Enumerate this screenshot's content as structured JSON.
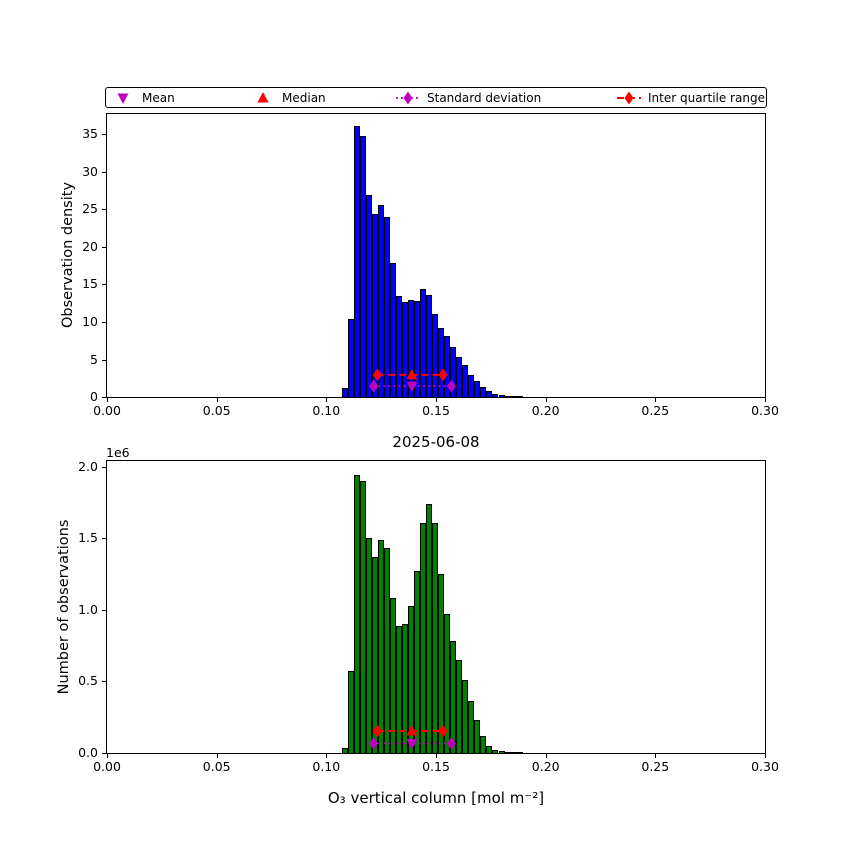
{
  "figure": {
    "title": "2025-06-08",
    "xlabel": "O₃ vertical column [mol m⁻²]"
  },
  "legend": {
    "items": [
      {
        "label": "Mean",
        "marker": "triangle-down",
        "line": "none",
        "color": "#bf00bf"
      },
      {
        "label": "Median",
        "marker": "triangle-up",
        "line": "none",
        "color": "#ff0000"
      },
      {
        "label": "Standard deviation",
        "marker": "diamond",
        "line": "dotted",
        "color": "#bf00bf"
      },
      {
        "label": "Inter quartile range",
        "marker": "diamond",
        "line": "dashed",
        "color": "#ff0000"
      }
    ]
  },
  "chart_data": [
    {
      "type": "bar",
      "subtype": "histogram",
      "ylabel": "Observation density",
      "bar_color": "#0000ff",
      "edge_color": "#000000",
      "xlim": [
        0.0,
        0.3
      ],
      "ylim": [
        0.0,
        37.7
      ],
      "xticks": [
        0.0,
        0.05,
        0.1,
        0.15,
        0.2,
        0.25,
        0.3
      ],
      "xtick_labels": [
        "0.00",
        "0.05",
        "0.10",
        "0.15",
        "0.20",
        "0.25",
        "0.30"
      ],
      "yticks": [
        0,
        5,
        10,
        15,
        20,
        25,
        30,
        35
      ],
      "ytick_labels": [
        "0",
        "5",
        "10",
        "15",
        "20",
        "25",
        "30",
        "35"
      ],
      "bin_start": 0.107,
      "bin_width": 0.00275,
      "bin_counts": [
        1.2,
        10.4,
        36.1,
        34.8,
        26.9,
        24.4,
        25.6,
        24.0,
        17.8,
        13.4,
        12.7,
        12.9,
        12.8,
        14.4,
        13.6,
        11.1,
        9.2,
        8.1,
        6.7,
        5.3,
        4.2,
        2.9,
        2.1,
        1.3,
        0.8,
        0.45,
        0.3,
        0.18,
        0.1,
        0.05
      ],
      "stats": {
        "mean": 0.139,
        "median": 0.139,
        "std_low": 0.1215,
        "std_high": 0.157,
        "iqr_low": 0.1233,
        "iqr_high": 0.1532,
        "std_marker_y": 1.45,
        "iqr_marker_y": 2.95
      }
    },
    {
      "type": "bar",
      "subtype": "histogram",
      "ylabel": "Number of observations",
      "offset_text": "1e6",
      "bar_color": "#008000",
      "edge_color": "#000000",
      "xlim": [
        0.0,
        0.3
      ],
      "ylim": [
        0,
        2040000
      ],
      "xticks": [
        0.0,
        0.05,
        0.1,
        0.15,
        0.2,
        0.25,
        0.3
      ],
      "xtick_labels": [
        "0.00",
        "0.05",
        "0.10",
        "0.15",
        "0.20",
        "0.25",
        "0.30"
      ],
      "yticks": [
        0,
        500000,
        1000000,
        1500000,
        2000000
      ],
      "ytick_labels": [
        "0.0",
        "0.5",
        "1.0",
        "1.5",
        "2.0"
      ],
      "bin_start": 0.107,
      "bin_width": 0.00275,
      "bin_counts": [
        35000,
        570000,
        1940000,
        1900000,
        1500000,
        1370000,
        1490000,
        1430000,
        1080000,
        890000,
        900000,
        1030000,
        1270000,
        1610000,
        1740000,
        1610000,
        1250000,
        970000,
        780000,
        650000,
        510000,
        360000,
        230000,
        120000,
        46000,
        18000,
        12000,
        5000,
        3000,
        1000
      ],
      "stats": {
        "mean": 0.139,
        "median": 0.139,
        "std_low": 0.1215,
        "std_high": 0.157,
        "iqr_low": 0.1233,
        "iqr_high": 0.1532,
        "std_marker_y": 67000,
        "iqr_marker_y": 154000
      }
    }
  ]
}
